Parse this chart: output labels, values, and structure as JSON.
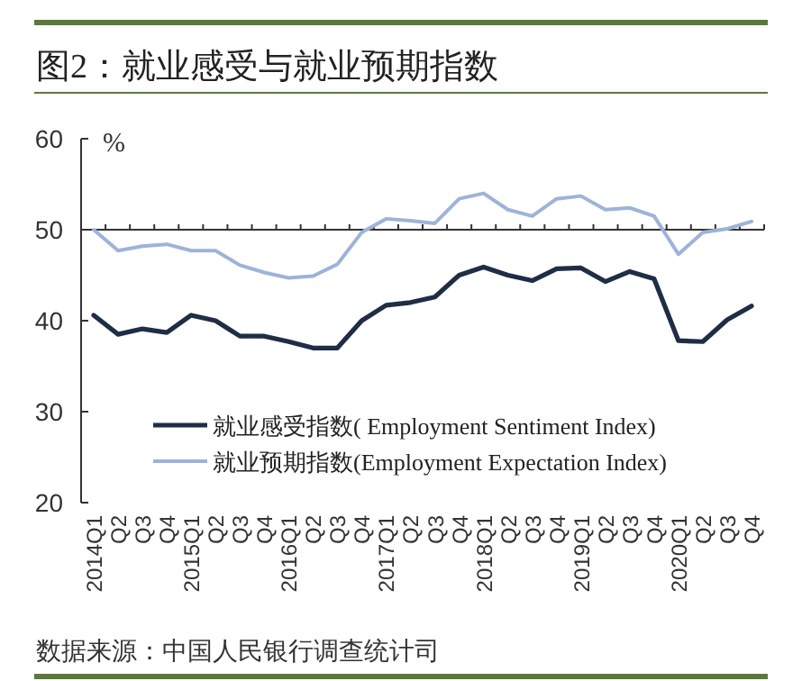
{
  "chart_data": {
    "type": "line",
    "title": "图2：就业感受与就业预期指数",
    "ylabel": "%",
    "categories": [
      "2014Q1",
      "Q2",
      "Q3",
      "Q4",
      "2015Q1",
      "Q2",
      "Q3",
      "Q4",
      "2016Q1",
      "Q2",
      "Q3",
      "Q4",
      "2017Q1",
      "Q2",
      "Q3",
      "Q4",
      "2018Q1",
      "Q2",
      "Q3",
      "Q4",
      "2019Q1",
      "Q2",
      "Q3",
      "Q4",
      "2020Q1",
      "Q2",
      "Q3",
      "Q4"
    ],
    "ylim": [
      20,
      60
    ],
    "yticks": [
      20,
      30,
      40,
      50,
      60
    ],
    "series": [
      {
        "name": "就业感受指数( Employment Sentiment Index)",
        "color": "#1f2d45",
        "values": [
          40.6,
          38.5,
          39.1,
          38.7,
          40.6,
          40.0,
          38.3,
          38.3,
          37.7,
          37.0,
          37.0,
          40.0,
          41.7,
          42.0,
          42.6,
          45.0,
          45.9,
          45.0,
          44.4,
          45.7,
          45.8,
          44.3,
          45.4,
          44.6,
          37.8,
          37.7,
          40.1,
          41.6
        ]
      },
      {
        "name": "就业预期指数(Employment Expectation Index)",
        "color": "#9db3d9",
        "values": [
          50.0,
          47.7,
          48.2,
          48.4,
          47.7,
          47.7,
          46.1,
          45.3,
          44.7,
          44.9,
          46.2,
          49.7,
          51.2,
          51.0,
          50.7,
          53.4,
          54.0,
          52.2,
          51.5,
          53.4,
          53.7,
          52.2,
          52.4,
          51.5,
          47.3,
          49.7,
          50.1,
          50.9
        ]
      }
    ],
    "ref_lines": [
      {
        "axis": "y",
        "value": 50
      }
    ],
    "legend": "bottom",
    "marker": "none",
    "line_style": "solid",
    "grid": false,
    "annotations": [
      "数据来源：中国人民银行调查统计司"
    ]
  }
}
